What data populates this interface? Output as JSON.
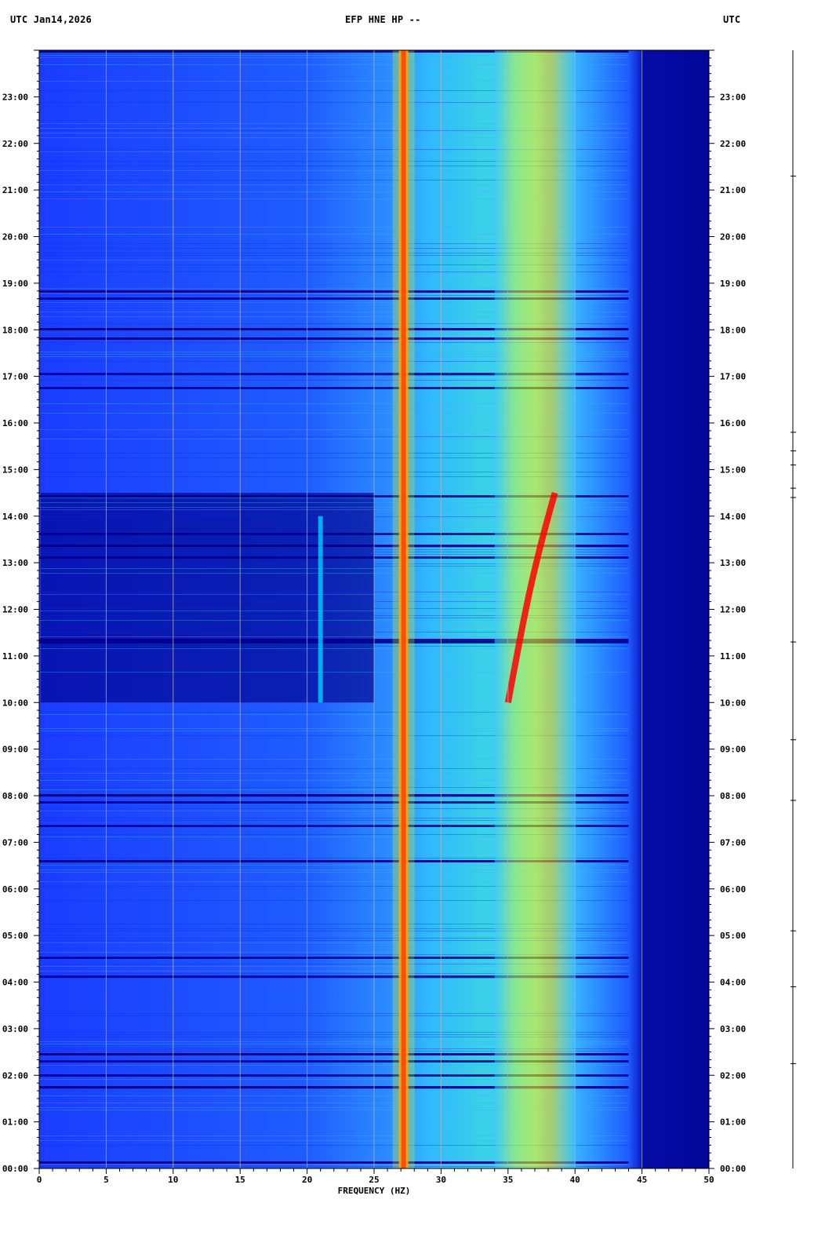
{
  "header": {
    "left": "UTC  Jan14,2026",
    "center": "EFP HNE HP --",
    "right": "UTC"
  },
  "chart_data": {
    "type": "heatmap",
    "subtype": "spectrogram",
    "title": "EFP HNE HP --",
    "date": "Jan14,2026",
    "xlabel": "FREQUENCY (HZ)",
    "ylabel": "UTC",
    "xlim": [
      0,
      50
    ],
    "ylim_hours": [
      0,
      24
    ],
    "x_ticks": [
      0,
      5,
      10,
      15,
      20,
      25,
      30,
      35,
      40,
      45,
      50
    ],
    "y_tick_labels": [
      "00:00",
      "01:00",
      "02:00",
      "03:00",
      "04:00",
      "05:00",
      "06:00",
      "07:00",
      "08:00",
      "09:00",
      "10:00",
      "11:00",
      "12:00",
      "13:00",
      "14:00",
      "15:00",
      "16:00",
      "17:00",
      "18:00",
      "19:00",
      "20:00",
      "21:00",
      "22:00",
      "23:00"
    ],
    "grid": true,
    "colormap": [
      "#00008b",
      "#0000ff",
      "#0066ff",
      "#00ccff",
      "#33ffcc",
      "#ffff00",
      "#ff8800",
      "#ff0000"
    ],
    "features": [
      {
        "name": "persistent line",
        "freq_hz": 27.2,
        "hours": [
          0,
          24
        ],
        "level": "high"
      },
      {
        "name": "broadband band",
        "freq_range_hz": [
          34,
          40
        ],
        "hours": [
          0,
          24
        ],
        "level": "medium-high"
      },
      {
        "name": "drifting line",
        "freq_range_hz": [
          35,
          38.5
        ],
        "hours": [
          10,
          14.5
        ],
        "level": "high"
      },
      {
        "name": "quiet period",
        "freq_range_hz": [
          0,
          25
        ],
        "hours": [
          10,
          14.5
        ],
        "level": "low"
      },
      {
        "name": "line",
        "freq_hz": 21,
        "hours": [
          10,
          14
        ],
        "level": "medium"
      },
      {
        "name": "high-frequency cutoff",
        "freq_hz": 45,
        "hours": [
          0,
          24
        ],
        "level": "low"
      }
    ]
  }
}
